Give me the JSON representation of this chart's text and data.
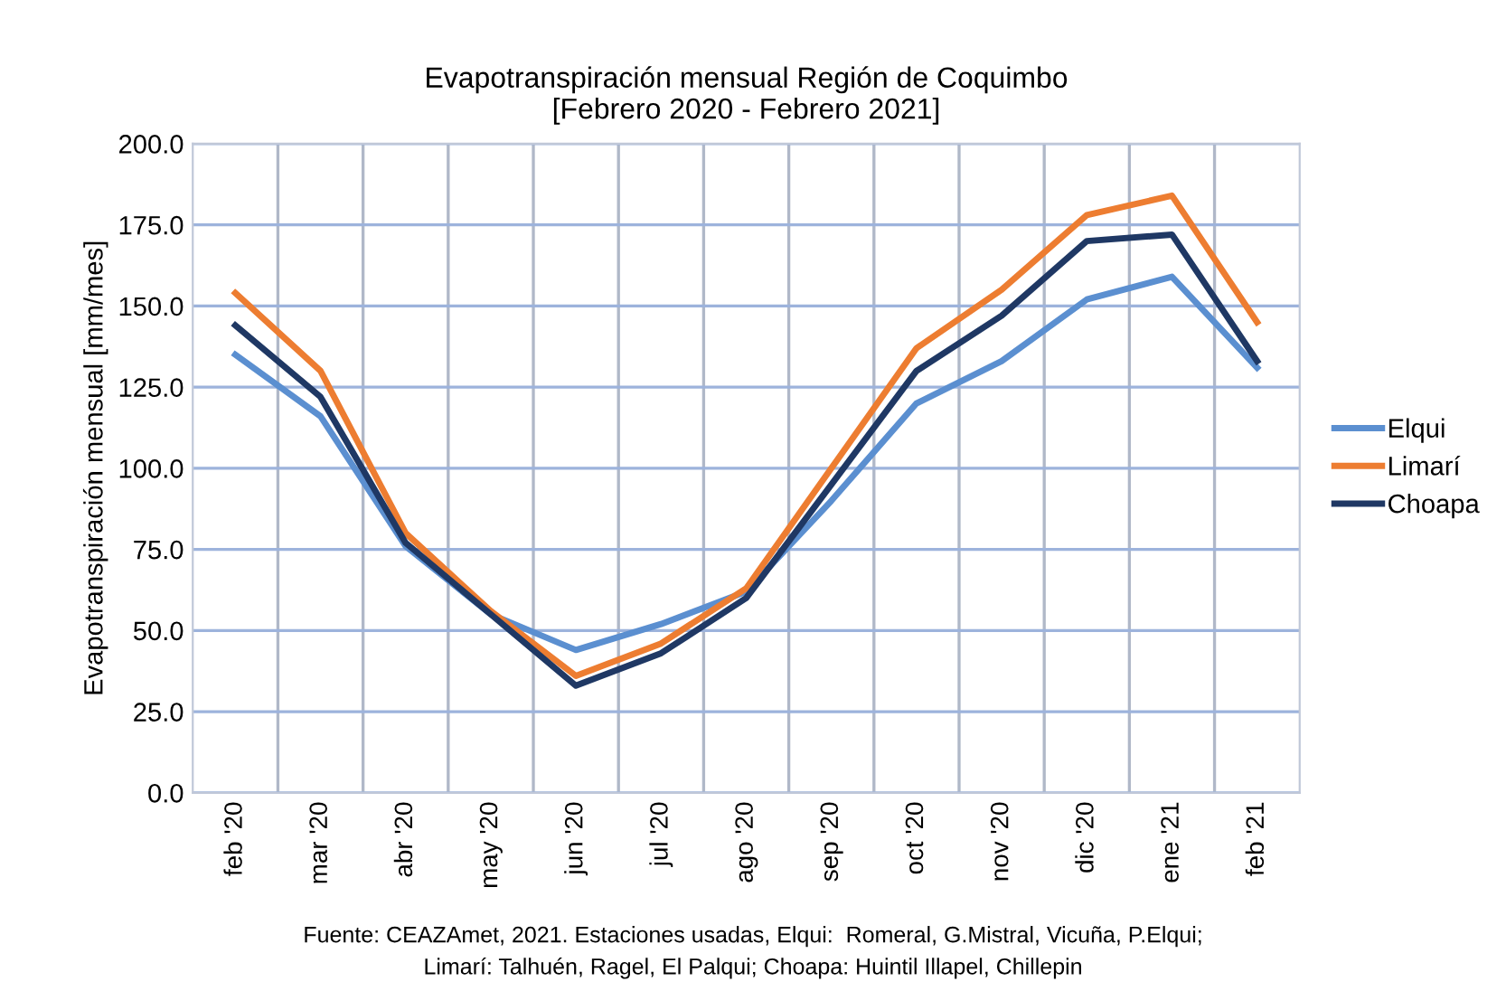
{
  "chart_data": {
    "type": "line",
    "title": "Evapotranspiración mensual Región de Coquimbo\n[Febrero 2020 - Febrero 2021]",
    "ylabel": "Evapotranspiración mensual [mm/mes]",
    "categories": [
      "feb '20",
      "mar '20",
      "abr '20",
      "may '20",
      "jun '20",
      "jul '20",
      "ago '20",
      "sep '20",
      "oct '20",
      "nov '20",
      "dic '20",
      "ene '21",
      "feb '21"
    ],
    "series": [
      {
        "name": "Elqui",
        "color": "#5b8fd0",
        "values": [
          135,
          116,
          76,
          55,
          44,
          52,
          62,
          90,
          120,
          133,
          152,
          159,
          131
        ]
      },
      {
        "name": "Limarí",
        "color": "#ed7d31",
        "values": [
          154,
          130,
          80,
          56,
          36,
          46,
          63,
          100,
          137,
          155,
          178,
          184,
          145
        ]
      },
      {
        "name": "Choapa",
        "color": "#1f3864",
        "values": [
          144,
          122,
          77,
          55,
          33,
          43,
          60,
          95,
          130,
          147,
          170,
          172,
          133
        ]
      }
    ],
    "ylim": [
      0,
      200
    ],
    "yticks": [
      {
        "value": 0,
        "label": "0.0"
      },
      {
        "value": 25,
        "label": "25.0"
      },
      {
        "value": 50,
        "label": "50.0"
      },
      {
        "value": 75,
        "label": "75.0"
      },
      {
        "value": 100,
        "label": "100.0"
      },
      {
        "value": 125,
        "label": "125.0"
      },
      {
        "value": 150,
        "label": "150.0"
      },
      {
        "value": 175,
        "label": "175.0"
      },
      {
        "value": 200,
        "label": "200.0"
      }
    ],
    "grid": true,
    "legend": "right",
    "marker": "none",
    "line_style": "solid",
    "annotations": [
      "Fuente: CEAZAmet, 2021. Estaciones usadas, Elqui:  Romeral, G.Mistral, Vicuña, P.Elqui;",
      "Limarí: Talhuén, Ragel, El Palqui; Choapa: Huintil Illapel, Chillepin"
    ]
  }
}
